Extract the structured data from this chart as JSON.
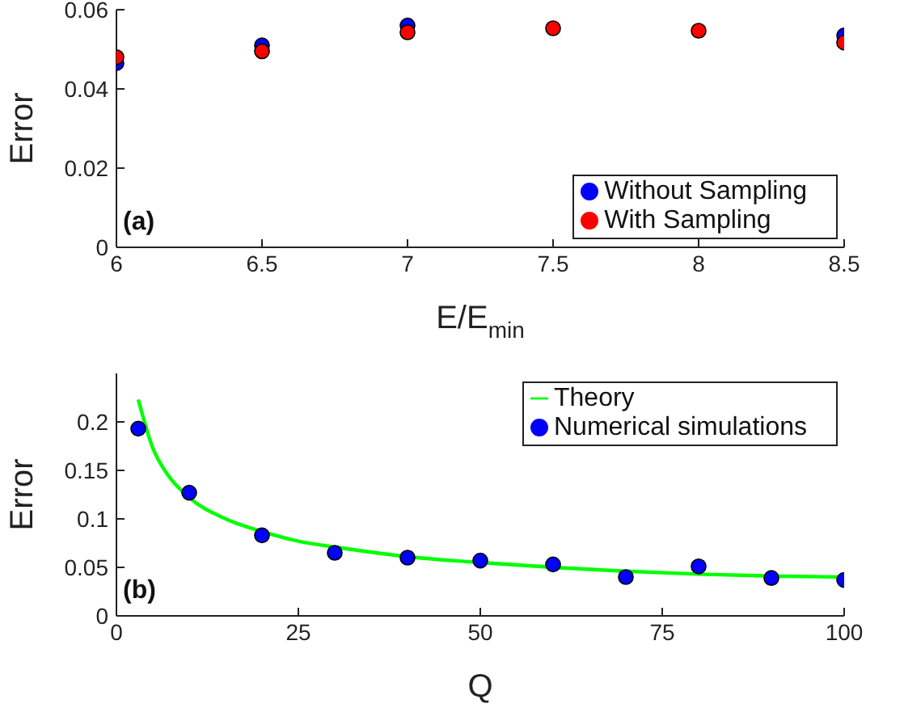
{
  "chart_data": [
    {
      "type": "scatter",
      "xlabel": "E/E$_{min}$",
      "ylabel": "Error",
      "x": [
        6,
        6.5,
        7,
        7.5,
        8,
        8.5
      ],
      "xlim": [
        6,
        8.5
      ],
      "xticks": [
        6,
        6.5,
        7,
        7.5,
        8,
        8.5
      ],
      "ylim": [
        0,
        0.06
      ],
      "yticks": [
        0,
        0.02,
        0.04,
        0.06
      ],
      "legend": "bottom right",
      "marker": "circle",
      "grid": false,
      "annotations": [
        "(a)"
      ],
      "series": [
        {
          "name": "Without Sampling",
          "color": "#0000ff",
          "values": [
            0.0465,
            0.051,
            0.056,
            null,
            null,
            0.0535
          ]
        },
        {
          "name": "With Sampling",
          "color": "#ff0000",
          "values": [
            0.048,
            0.0495,
            0.0543,
            0.0553,
            0.0547,
            0.0517
          ]
        }
      ]
    },
    {
      "type": "scatter",
      "xlabel": "Q",
      "ylabel": "Error",
      "x": [
        3,
        10,
        20,
        30,
        40,
        50,
        60,
        70,
        80,
        90,
        100
      ],
      "xlim": [
        0,
        100
      ],
      "xticks": [
        0,
        25,
        50,
        75,
        100
      ],
      "ylim": [
        0,
        0.25
      ],
      "yticks": [
        0,
        0.05,
        0.1,
        0.15,
        0.2
      ],
      "legend": "top right",
      "grid": false,
      "annotations": [
        "(b)"
      ],
      "series": [
        {
          "name": "Theory",
          "type": "line",
          "marker": "none",
          "color": "#00ff00",
          "x": [
            3,
            5,
            7,
            10,
            15,
            20,
            25,
            30,
            40,
            50,
            60,
            70,
            80,
            90,
            100
          ],
          "values": [
            0.223,
            0.173,
            0.146,
            0.122,
            0.1,
            0.087,
            0.077,
            0.071,
            0.061,
            0.055,
            0.05,
            0.046,
            0.043,
            0.041,
            0.04
          ]
        },
        {
          "name": "Numerical simulations",
          "marker": "circle",
          "color": "#0000ff",
          "values": [
            0.193,
            0.127,
            0.083,
            0.065,
            0.06,
            0.057,
            0.053,
            0.04,
            0.051,
            0.039,
            0.037
          ]
        }
      ]
    }
  ]
}
